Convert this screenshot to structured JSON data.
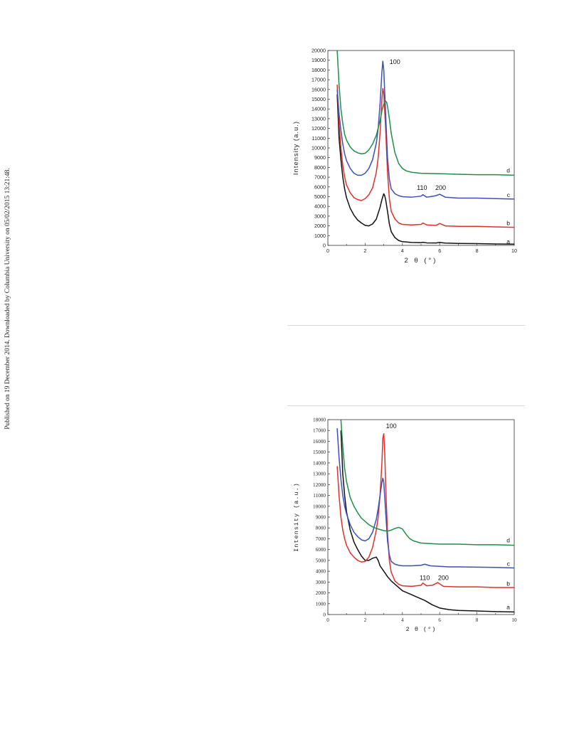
{
  "side_note": "Published on 19 December 2014. Downloaded by Columbia University on 05/02/2015 13:21:48.",
  "chart_data": [
    {
      "type": "line",
      "xlabel": "2 θ (°)",
      "ylabel": "Intensity (a.u.)",
      "xlim": [
        0,
        10
      ],
      "ylim": [
        0,
        20000
      ],
      "xticks": [
        0,
        2,
        4,
        6,
        8,
        10
      ],
      "yticks": [
        0,
        1000,
        2000,
        3000,
        4000,
        5000,
        6000,
        7000,
        8000,
        9000,
        10000,
        11000,
        12000,
        13000,
        14000,
        15000,
        16000,
        17000,
        18000,
        19000,
        20000
      ],
      "annotations": [
        {
          "text": "100",
          "x": 3.6,
          "y": 18600
        },
        {
          "text": "110",
          "x": 5.05,
          "y": 5700
        },
        {
          "text": "200",
          "x": 6.05,
          "y": 5700
        }
      ],
      "series": [
        {
          "name": "a",
          "color": "#111111",
          "label_y": 400,
          "x": [
            0.5,
            0.6,
            0.7,
            0.8,
            0.9,
            1.0,
            1.2,
            1.4,
            1.6,
            1.8,
            2.0,
            2.2,
            2.4,
            2.6,
            2.8,
            2.9,
            3.0,
            3.05,
            3.1,
            3.2,
            3.3,
            3.4,
            3.6,
            3.8,
            4.0,
            4.5,
            5.0,
            5.1,
            5.3,
            5.8,
            6.0,
            6.3,
            7.0,
            8.0,
            9.0,
            10.0
          ],
          "y": [
            15500,
            11000,
            8800,
            7000,
            5800,
            4900,
            3800,
            3100,
            2600,
            2300,
            2050,
            2000,
            2200,
            2700,
            3900,
            4700,
            5300,
            5100,
            4700,
            3500,
            2200,
            1400,
            800,
            500,
            380,
            300,
            280,
            320,
            260,
            250,
            300,
            240,
            200,
            180,
            150,
            130
          ]
        },
        {
          "name": "b",
          "color": "#e0302a",
          "label_y": 2300,
          "x": [
            0.5,
            0.6,
            0.7,
            0.8,
            0.9,
            1.0,
            1.2,
            1.4,
            1.6,
            1.8,
            2.0,
            2.2,
            2.4,
            2.6,
            2.7,
            2.8,
            2.9,
            2.95,
            3.0,
            3.1,
            3.2,
            3.3,
            3.4,
            3.6,
            3.8,
            4.0,
            4.5,
            5.0,
            5.1,
            5.3,
            5.8,
            6.0,
            6.3,
            7.0,
            8.0,
            9.0,
            10.0
          ],
          "y": [
            16500,
            12500,
            10000,
            8200,
            7000,
            6200,
            5400,
            4900,
            4700,
            4600,
            4800,
            5200,
            5900,
            7500,
            9000,
            11500,
            15000,
            16100,
            15600,
            12000,
            7500,
            4800,
            3500,
            2700,
            2300,
            2150,
            2100,
            2150,
            2300,
            2100,
            2050,
            2250,
            2000,
            1950,
            1950,
            1900,
            1850
          ]
        },
        {
          "name": "c",
          "color": "#3a4fc0",
          "label_y": 5200,
          "x": [
            0.5,
            0.6,
            0.7,
            0.8,
            0.9,
            1.0,
            1.2,
            1.4,
            1.6,
            1.8,
            2.0,
            2.2,
            2.4,
            2.6,
            2.7,
            2.8,
            2.9,
            2.95,
            3.0,
            3.1,
            3.2,
            3.3,
            3.4,
            3.6,
            3.8,
            4.0,
            4.5,
            5.0,
            5.1,
            5.3,
            5.5,
            5.8,
            6.0,
            6.3,
            7.0,
            8.0,
            9.0,
            10.0
          ],
          "y": [
            16000,
            13500,
            11800,
            10400,
            9400,
            8700,
            7900,
            7400,
            7200,
            7200,
            7400,
            7900,
            8800,
            10500,
            12000,
            14500,
            17800,
            18900,
            18000,
            13500,
            9000,
            6800,
            5800,
            5300,
            5100,
            5000,
            4950,
            5050,
            5200,
            4950,
            5000,
            5100,
            5250,
            4950,
            4850,
            4850,
            4800,
            4750
          ]
        },
        {
          "name": "d",
          "color": "#1f8f4a",
          "label_y": 7700,
          "x": [
            0.5,
            0.6,
            0.7,
            0.8,
            0.9,
            1.0,
            1.2,
            1.4,
            1.6,
            1.8,
            2.0,
            2.2,
            2.4,
            2.6,
            2.8,
            2.9,
            3.0,
            3.1,
            3.15,
            3.2,
            3.3,
            3.4,
            3.6,
            3.8,
            4.0,
            4.2,
            4.5,
            5.0,
            6.0,
            7.0,
            8.0,
            9.0,
            10.0
          ],
          "y": [
            20000,
            16500,
            14000,
            12500,
            11400,
            10800,
            10100,
            9700,
            9500,
            9400,
            9450,
            9800,
            10400,
            11300,
            12800,
            13800,
            14500,
            14800,
            14700,
            14300,
            13000,
            11500,
            9500,
            8400,
            7900,
            7650,
            7500,
            7400,
            7350,
            7300,
            7250,
            7250,
            7200
          ]
        }
      ]
    },
    {
      "type": "line",
      "xlabel": "2 θ (°)",
      "ylabel": "Intensity (a.u.)",
      "xlim": [
        0,
        10
      ],
      "ylim": [
        0,
        18000
      ],
      "xticks": [
        0,
        2,
        4,
        6,
        8,
        10
      ],
      "yticks": [
        0,
        1000,
        2000,
        3000,
        4000,
        5000,
        6000,
        7000,
        8000,
        9000,
        10000,
        11000,
        12000,
        13000,
        14000,
        15000,
        16000,
        17000,
        18000
      ],
      "annotations": [
        {
          "text": "100",
          "x": 3.4,
          "y": 17200
        },
        {
          "text": "110",
          "x": 5.2,
          "y": 3200
        },
        {
          "text": "200",
          "x": 6.2,
          "y": 3200
        }
      ],
      "series": [
        {
          "name": "a",
          "color": "#111111",
          "label_y": 700,
          "x": [
            0.7,
            0.8,
            0.9,
            1.0,
            1.2,
            1.4,
            1.6,
            1.8,
            2.0,
            2.2,
            2.4,
            2.6,
            2.7,
            2.8,
            3.0,
            3.2,
            3.4,
            3.6,
            3.8,
            4.0,
            4.4,
            4.8,
            5.2,
            5.6,
            6.0,
            6.5,
            7.0,
            8.0,
            9.0,
            10.0
          ],
          "y": [
            17000,
            13000,
            11000,
            9500,
            7800,
            6700,
            6000,
            5400,
            5000,
            5000,
            5200,
            5300,
            5000,
            4500,
            4000,
            3500,
            3100,
            2800,
            2500,
            2200,
            1900,
            1600,
            1300,
            900,
            600,
            450,
            380,
            330,
            270,
            240
          ]
        },
        {
          "name": "b",
          "color": "#e0302a",
          "label_y": 2850,
          "x": [
            0.5,
            0.6,
            0.7,
            0.8,
            0.9,
            1.0,
            1.2,
            1.4,
            1.6,
            1.8,
            2.0,
            2.2,
            2.4,
            2.6,
            2.7,
            2.8,
            2.9,
            2.95,
            3.0,
            3.05,
            3.1,
            3.2,
            3.3,
            3.4,
            3.6,
            3.8,
            4.0,
            4.5,
            5.0,
            5.1,
            5.3,
            5.6,
            5.9,
            6.2,
            7.0,
            8.0,
            9.0,
            10.0
          ],
          "y": [
            13700,
            11000,
            9000,
            7800,
            7000,
            6400,
            5700,
            5300,
            5000,
            4850,
            4900,
            5300,
            6200,
            7800,
            9000,
            11000,
            14000,
            16300,
            16700,
            15000,
            12000,
            7500,
            5000,
            3900,
            3100,
            2800,
            2650,
            2600,
            2700,
            2900,
            2650,
            2700,
            2950,
            2600,
            2550,
            2550,
            2500,
            2500
          ]
        },
        {
          "name": "c",
          "color": "#3a4fc0",
          "label_y": 4700,
          "x": [
            0.5,
            0.6,
            0.7,
            0.8,
            0.9,
            1.0,
            1.2,
            1.4,
            1.6,
            1.8,
            2.0,
            2.2,
            2.4,
            2.6,
            2.7,
            2.8,
            2.9,
            2.95,
            3.0,
            3.1,
            3.2,
            3.3,
            3.4,
            3.6,
            3.8,
            4.0,
            4.5,
            5.0,
            5.2,
            5.5,
            6.0,
            6.5,
            7.0,
            8.0,
            9.0,
            10.0
          ],
          "y": [
            17200,
            14500,
            12500,
            11000,
            10000,
            9300,
            8300,
            7600,
            7200,
            6900,
            6800,
            7000,
            7600,
            8800,
            9800,
            11000,
            12200,
            12600,
            12200,
            9500,
            6800,
            5500,
            4900,
            4650,
            4550,
            4500,
            4500,
            4550,
            4650,
            4500,
            4450,
            4400,
            4400,
            4380,
            4350,
            4300
          ]
        },
        {
          "name": "d",
          "color": "#1f8f4a",
          "label_y": 6850,
          "x": [
            0.7,
            0.8,
            0.9,
            1.0,
            1.2,
            1.4,
            1.6,
            1.8,
            2.0,
            2.2,
            2.4,
            2.6,
            2.8,
            3.0,
            3.2,
            3.4,
            3.6,
            3.8,
            4.0,
            4.2,
            4.4,
            4.6,
            4.8,
            5.0,
            5.5,
            6.0,
            7.0,
            8.0,
            9.0,
            10.0
          ],
          "y": [
            18000,
            15500,
            13500,
            12300,
            10800,
            10000,
            9400,
            8900,
            8600,
            8300,
            8100,
            7950,
            7850,
            7750,
            7700,
            7800,
            7950,
            8050,
            7900,
            7400,
            7000,
            6800,
            6700,
            6600,
            6550,
            6500,
            6500,
            6450,
            6450,
            6400
          ]
        }
      ]
    }
  ]
}
